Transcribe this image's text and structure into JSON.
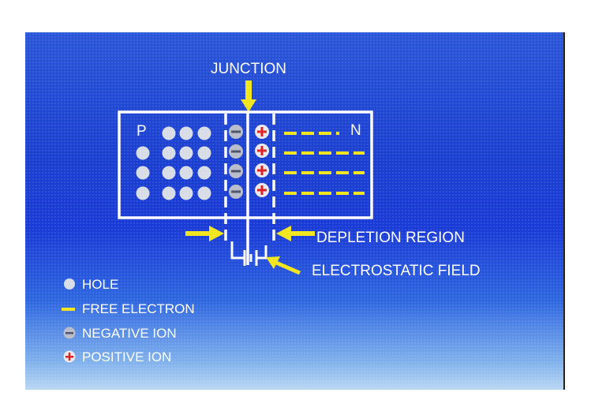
{
  "diagram": {
    "junction_label": "JUNCTION",
    "p_label": "P",
    "n_label": "N",
    "depletion_label": "DEPLETION REGION",
    "field_label": "ELECTROSTATIC FIELD",
    "negative_ion_symbol": "−",
    "positive_ion_symbol": "+"
  },
  "legend": {
    "hole": "HOLE",
    "free_electron": "FREE ELECTRON",
    "negative_ion": "NEGATIVE ION",
    "positive_ion": "POSITIVE ION"
  },
  "colors": {
    "arrow": "#f2e51c",
    "electron": "#f2e51c",
    "hole": "#d8dce6",
    "negative_ion": "#b8bcc8",
    "positive_ion": "#e02020",
    "outline": "#ffffff"
  }
}
